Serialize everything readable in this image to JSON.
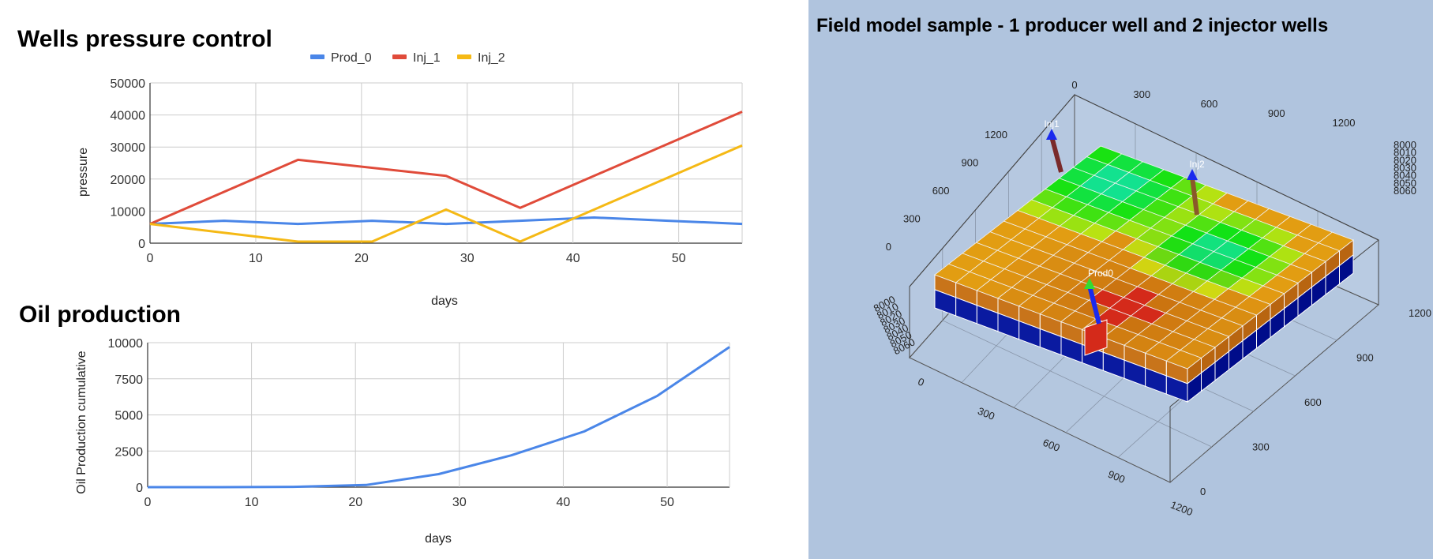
{
  "chart_data": [
    {
      "type": "line",
      "title": "Wells pressure control",
      "xlabel": "days",
      "ylabel": "pressure",
      "xlim": [
        0,
        56
      ],
      "ylim": [
        0,
        50000
      ],
      "xticks": [
        0,
        10,
        20,
        30,
        40,
        50
      ],
      "yticks": [
        0,
        10000,
        20000,
        30000,
        40000,
        50000
      ],
      "grid": true,
      "legend_position": "top",
      "series": [
        {
          "name": "Prod_0",
          "color": "#4a86e8",
          "x": [
            0,
            7,
            14,
            21,
            28,
            35,
            42,
            49,
            56
          ],
          "y": [
            6000,
            7000,
            6000,
            7000,
            6000,
            7000,
            8000,
            7000,
            6000
          ]
        },
        {
          "name": "Inj_1",
          "color": "#e04b3a",
          "x": [
            0,
            14,
            28,
            35,
            56
          ],
          "y": [
            6000,
            26000,
            21000,
            11000,
            41000
          ]
        },
        {
          "name": "Inj_2",
          "color": "#f5b915",
          "x": [
            0,
            14,
            21,
            28,
            35,
            56
          ],
          "y": [
            6000,
            500,
            500,
            10500,
            500,
            30500
          ]
        }
      ]
    },
    {
      "type": "line",
      "title": "Oil production",
      "xlabel": "days",
      "ylabel": "Oil Production cumulative",
      "xlim": [
        0,
        56
      ],
      "ylim": [
        0,
        10000
      ],
      "xticks": [
        0,
        10,
        20,
        30,
        40,
        50
      ],
      "yticks": [
        0,
        2500,
        5000,
        7500,
        10000
      ],
      "grid": true,
      "series": [
        {
          "name": "",
          "color": "#4a86e8",
          "x": [
            0,
            7,
            14,
            21,
            28,
            35,
            42,
            49,
            56
          ],
          "y": [
            0,
            0,
            20,
            150,
            900,
            2200,
            3850,
            6300,
            9700
          ]
        }
      ]
    }
  ],
  "field_model": {
    "title": "Field model sample - 1 producer well and 2 injector wells",
    "background": "#b0c4de",
    "wells": [
      {
        "label": "Inj1"
      },
      {
        "label": "Inj2"
      },
      {
        "label": "Prod0"
      }
    ],
    "x_axis_ticks": [
      "0",
      "300",
      "600",
      "900",
      "1200"
    ],
    "x_axis_ticks_top": [
      "0",
      "300",
      "600",
      "900",
      "1200"
    ],
    "y_axis_ticks": [
      "0",
      "300",
      "600",
      "900",
      "1200"
    ],
    "y_axis_ticks_left": [
      "0",
      "300",
      "600",
      "900",
      "1200"
    ],
    "z_axis_ticks": [
      "8000",
      "8010",
      "8020",
      "8030",
      "8040",
      "8050",
      "8060"
    ],
    "z_axis_ticks_left": [
      "8000",
      "8010",
      "8020",
      "8030",
      "8040",
      "8050",
      "8060"
    ]
  }
}
